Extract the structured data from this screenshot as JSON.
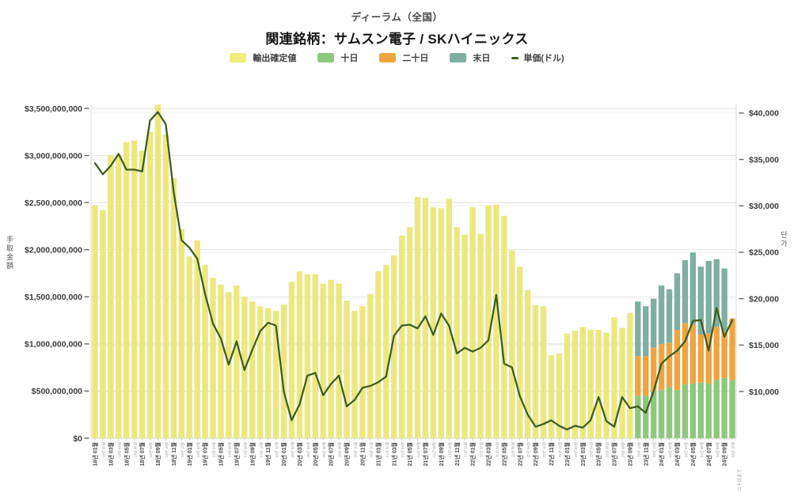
{
  "header": {
    "title": "ディーラム（全国）",
    "subtitle": "関連銘柄：サムスン電子 / SKハイニックス"
  },
  "legend": {
    "items": [
      {
        "id": "export-confirmed",
        "label": "輸出確定値",
        "color": "#F0ED79"
      },
      {
        "id": "day-10",
        "label": "十日",
        "color": "#8EC87D"
      },
      {
        "id": "day-20",
        "label": "二十日",
        "color": "#EFA53F"
      },
      {
        "id": "month-end",
        "label": "末日",
        "color": "#7FAFA2"
      }
    ],
    "line_item": {
      "label": "単価(ドル)",
      "color": "#3F5E20"
    }
  },
  "axes": {
    "left": {
      "title": "手取金額",
      "tick_labels": [
        "$0",
        "$500,000,000",
        "$1,000,000,000",
        "$1,500,000,000",
        "$2,000,000,000",
        "$2,500,000,000",
        "$3,000,000,000",
        "$3,500,000,000"
      ],
      "tick_values_billion": [
        0,
        0.5,
        1,
        1.5,
        2,
        2.5,
        3,
        3.5
      ]
    },
    "right": {
      "title": "단가",
      "tick_labels": [
        "$10,000",
        "$15,000",
        "$20,000",
        "$25,000",
        "$30,000",
        "$35,000",
        "$40,000"
      ],
      "tick_values_usd": [
        10000,
        15000,
        20000,
        25000,
        30000,
        35000,
        40000
      ]
    },
    "x": {
      "partial_month_note": "二十日まで"
    }
  },
  "chart_data": {
    "type": "combo-bar-line",
    "title": "ディーラム（全国） 関連銘柄：サムスン電子 / SKハイニックス",
    "ylabel_left": "手取金額",
    "ylabel_right": "단가",
    "ylim_left_usd": [
      0,
      3500000000
    ],
    "ylim_right_usd_visible_ticks": [
      10000,
      40000
    ],
    "grid": true,
    "legend_position": "top",
    "categories": [
      "18년 01월",
      "18년 02월",
      "18년 03월",
      "18년 04월",
      "18년 05월",
      "18년 06월",
      "18년 07월",
      "18년 08월",
      "18년 09월",
      "18년 10월",
      "18년 11월",
      "18년 12월",
      "19년 01월",
      "19년 02월",
      "19년 03월",
      "19년 04월",
      "19년 05월",
      "19년 06월",
      "19년 07월",
      "19년 08월",
      "19년 09월",
      "19년 10월",
      "19년 11월",
      "19년 12월",
      "20년 01월",
      "20년 02월",
      "20년 03월",
      "20년 04월",
      "20년 05월",
      "20년 06월",
      "20년 07월",
      "20년 08월",
      "20년 09월",
      "20년 10월",
      "20년 11월",
      "20년 12월",
      "21년 01월",
      "21년 02월",
      "21년 03월",
      "21년 04월",
      "21년 05월",
      "21년 06월",
      "21년 07월",
      "21년 08월",
      "21년 09월",
      "21년 10월",
      "21년 11월",
      "21년 12월",
      "22년 01월",
      "22년 02월",
      "22년 03월",
      "22년 04월",
      "22년 05월",
      "22년 06월",
      "22년 07월",
      "22년 08월",
      "22년 09월",
      "22년 10월",
      "22년 11월",
      "22년 12월",
      "23년 01월",
      "23년 02월",
      "23년 03월",
      "23년 04월",
      "23년 05월",
      "23년 06월",
      "23년 07월",
      "23년 08월",
      "23년 09월",
      "23년 10월",
      "23년 11월",
      "23년 12월",
      "24년 01월",
      "24년 02월",
      "24년 03월",
      "24년 04월",
      "24년 05월",
      "24년 06월",
      "24년 07월",
      "24년 08월",
      "24년 09월",
      "24년 10월"
    ],
    "series": [
      {
        "name": "輸出確定値",
        "type": "bar",
        "stacked": false,
        "color": "#ECE87E",
        "unit": "billion USD",
        "start_index": 0,
        "values": [
          2.47,
          2.42,
          3.0,
          3.01,
          3.14,
          3.16,
          3.05,
          3.25,
          3.54,
          3.22,
          2.76,
          2.22,
          1.93,
          2.1,
          1.84,
          1.7,
          1.63,
          1.55,
          1.62,
          1.5,
          1.45,
          1.4,
          1.38,
          1.35,
          1.42,
          1.66,
          1.77,
          1.74,
          1.74,
          1.64,
          1.68,
          1.64,
          1.46,
          1.35,
          1.4,
          1.53,
          1.77,
          1.84,
          1.94,
          2.15,
          2.24,
          2.56,
          2.55,
          2.45,
          2.44,
          2.54,
          2.24,
          2.16,
          2.45,
          2.17,
          2.47,
          2.48,
          2.36,
          1.99,
          1.82,
          1.57,
          1.41,
          1.4,
          0.88,
          0.9,
          1.11,
          1.14,
          1.18,
          1.15,
          1.15,
          1.12,
          1.28,
          1.17,
          1.33
        ]
      },
      {
        "name": "十日",
        "type": "bar",
        "stacked": true,
        "color": "#8EC87D",
        "unit": "billion USD",
        "start_index": 69,
        "values": [
          0.45,
          0.45,
          0.5,
          0.51,
          0.54,
          0.51,
          0.57,
          0.58,
          0.59,
          0.58,
          0.62,
          0.64,
          0.62
        ]
      },
      {
        "name": "二十日",
        "type": "bar",
        "stacked": true,
        "color": "#EFA53F",
        "unit": "billion USD",
        "start_index": 69,
        "values": [
          0.42,
          0.42,
          0.46,
          0.49,
          0.47,
          0.64,
          0.65,
          0.63,
          0.51,
          0.53,
          0.56,
          0.49,
          0.65
        ]
      },
      {
        "name": "末日",
        "type": "bar",
        "stacked": true,
        "color": "#7FAFA2",
        "unit": "billion USD",
        "start_index": 69,
        "values": [
          0.58,
          0.53,
          0.52,
          0.62,
          0.57,
          0.6,
          0.67,
          0.76,
          0.72,
          0.77,
          0.72,
          0.67,
          0
        ]
      }
    ],
    "line": {
      "name": "単価(ドル)",
      "type": "line",
      "color": "#3F5E20",
      "axis": "right",
      "unit": "USD",
      "values": [
        34600,
        33400,
        34300,
        35600,
        33900,
        33900,
        33700,
        39200,
        40100,
        38800,
        31500,
        26300,
        25500,
        24300,
        20500,
        17300,
        15700,
        12900,
        15400,
        12300,
        14500,
        16500,
        17400,
        17100,
        10000,
        6900,
        8600,
        11700,
        12000,
        9600,
        10800,
        11700,
        8400,
        9100,
        10400,
        10600,
        11000,
        11600,
        16000,
        17100,
        17200,
        16800,
        18100,
        16100,
        18400,
        17100,
        14100,
        14700,
        14300,
        14700,
        15500,
        20400,
        13000,
        12600,
        9500,
        7500,
        6200,
        6500,
        6900,
        6300,
        5900,
        6300,
        6100,
        6900,
        9400,
        6800,
        6200,
        9400,
        8200,
        8400,
        7700,
        10000,
        13000,
        13800,
        14400,
        15400,
        17600,
        17700,
        14400,
        19000,
        15900,
        17700
      ]
    }
  }
}
